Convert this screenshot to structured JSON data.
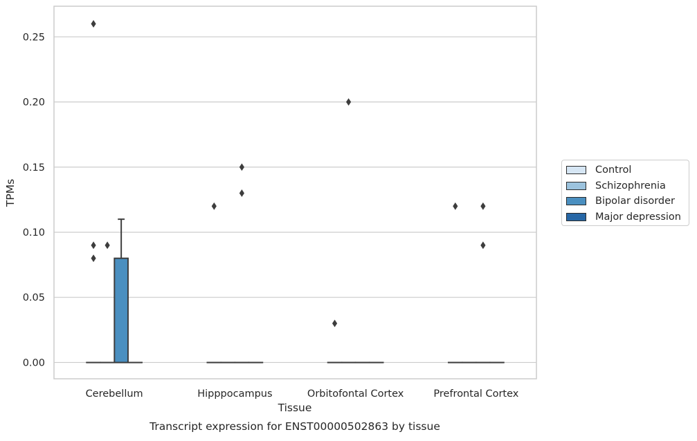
{
  "chart_data": {
    "type": "box",
    "xlabel": "Tissue",
    "ylabel": "TPMs",
    "caption": "Transcript expression for ENST00000502863 by tissue",
    "categories": [
      "Cerebellum",
      "Hipppocampus",
      "Orbitofontal Cortex",
      "Prefrontal Cortex"
    ],
    "ylim": [
      -0.0125,
      0.2735
    ],
    "yticks": [
      0.0,
      0.05,
      0.1,
      0.15,
      0.2,
      0.25
    ],
    "ytick_labels": [
      "0.00",
      "0.05",
      "0.10",
      "0.15",
      "0.20",
      "0.25"
    ],
    "grid": "horizontal",
    "legend_position": "right",
    "series": [
      {
        "name": "Control",
        "color": "#d6e6f4",
        "boxes": [
          {
            "q1": 0,
            "median": 0,
            "q3": 0,
            "whisker_low": 0,
            "whisker_high": 0,
            "outliers": [
              0.26,
              0.09,
              0.08
            ]
          },
          {
            "q1": 0,
            "median": 0,
            "q3": 0,
            "whisker_low": 0,
            "whisker_high": 0,
            "outliers": [
              0.12
            ]
          },
          {
            "q1": 0,
            "median": 0,
            "q3": 0,
            "whisker_low": 0,
            "whisker_high": 0,
            "outliers": [
              0.03
            ]
          },
          {
            "q1": 0,
            "median": 0,
            "q3": 0,
            "whisker_low": 0,
            "whisker_high": 0,
            "outliers": [
              0.12
            ]
          }
        ]
      },
      {
        "name": "Schizophrenia",
        "color": "#9cc3de",
        "boxes": [
          {
            "q1": 0,
            "median": 0,
            "q3": 0,
            "whisker_low": 0,
            "whisker_high": 0,
            "outliers": [
              0.09
            ]
          },
          {
            "q1": 0,
            "median": 0,
            "q3": 0,
            "whisker_low": 0,
            "whisker_high": 0,
            "outliers": []
          },
          {
            "q1": 0,
            "median": 0,
            "q3": 0,
            "whisker_low": 0,
            "whisker_high": 0,
            "outliers": [
              0.2
            ]
          },
          {
            "q1": 0,
            "median": 0,
            "q3": 0,
            "whisker_low": 0,
            "whisker_high": 0,
            "outliers": []
          }
        ]
      },
      {
        "name": "Bipolar disorder",
        "color": "#4a8fc0",
        "boxes": [
          {
            "q1": 0,
            "median": 0,
            "q3": 0.08,
            "whisker_low": 0,
            "whisker_high": 0.11,
            "outliers": []
          },
          {
            "q1": 0,
            "median": 0,
            "q3": 0,
            "whisker_low": 0,
            "whisker_high": 0,
            "outliers": [
              0.15,
              0.13
            ]
          },
          {
            "q1": 0,
            "median": 0,
            "q3": 0,
            "whisker_low": 0,
            "whisker_high": 0,
            "outliers": []
          },
          {
            "q1": 0,
            "median": 0,
            "q3": 0,
            "whisker_low": 0,
            "whisker_high": 0,
            "outliers": [
              0.12,
              0.09
            ]
          }
        ]
      },
      {
        "name": "Major depression",
        "color": "#2767a6",
        "boxes": [
          {
            "q1": 0,
            "median": 0,
            "q3": 0,
            "whisker_low": 0,
            "whisker_high": 0,
            "outliers": []
          },
          {
            "q1": 0,
            "median": 0,
            "q3": 0,
            "whisker_low": 0,
            "whisker_high": 0,
            "outliers": []
          },
          {
            "q1": 0,
            "median": 0,
            "q3": 0,
            "whisker_low": 0,
            "whisker_high": 0,
            "outliers": []
          },
          {
            "q1": 0,
            "median": 0,
            "q3": 0,
            "whisker_low": 0,
            "whisker_high": 0,
            "outliers": []
          }
        ]
      }
    ]
  }
}
